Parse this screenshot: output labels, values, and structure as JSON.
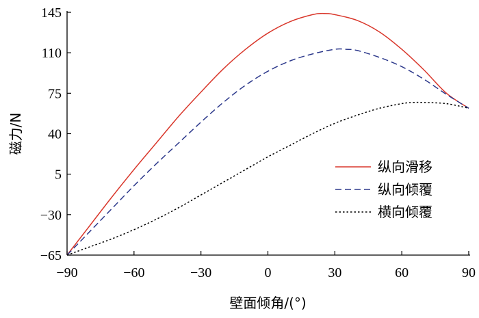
{
  "chart_data": {
    "type": "line",
    "title": "",
    "xlabel": "壁面倾角/(°)",
    "ylabel": "磁力/N",
    "xlim": [
      -90,
      90
    ],
    "ylim": [
      -65,
      145
    ],
    "xticks": [
      -90,
      -60,
      -30,
      0,
      30,
      60,
      90
    ],
    "yticks": [
      -65,
      -30,
      5,
      40,
      75,
      110,
      145
    ],
    "xtick_labels": [
      "−90",
      "−60",
      "−30",
      "0",
      "30",
      "60",
      "90"
    ],
    "ytick_labels": [
      "−65",
      "−30",
      "5",
      "40",
      "75",
      "110",
      "145"
    ],
    "grid": false,
    "legend_position": "right-middle",
    "series": [
      {
        "name": "纵向滑移",
        "color": "#d9372b",
        "style": "solid",
        "x": [
          -90,
          -80,
          -70,
          -60,
          -50,
          -40,
          -30,
          -20,
          -10,
          0,
          10,
          20,
          25,
          30,
          40,
          50,
          60,
          70,
          80,
          90
        ],
        "y": [
          -65,
          -40,
          -15,
          9,
          32,
          55,
          76,
          96,
          113,
          127,
          137,
          143,
          144,
          143,
          138,
          128,
          113,
          95,
          75,
          62
        ]
      },
      {
        "name": "纵向倾覆",
        "color": "#2e3a8c",
        "style": "dashed",
        "x": [
          -90,
          -80,
          -70,
          -60,
          -50,
          -40,
          -30,
          -20,
          -10,
          0,
          10,
          20,
          30,
          35,
          40,
          50,
          60,
          70,
          80,
          90
        ],
        "y": [
          -65,
          -45,
          -25,
          -5,
          14,
          32,
          50,
          67,
          82,
          94,
          103,
          109,
          113,
          113,
          112,
          106,
          98,
          87,
          74,
          62
        ]
      },
      {
        "name": "横向倾覆",
        "color": "#000000",
        "style": "dotted",
        "x": [
          -90,
          -80,
          -70,
          -60,
          -50,
          -40,
          -30,
          -20,
          -10,
          0,
          10,
          20,
          30,
          40,
          50,
          60,
          65,
          70,
          80,
          90
        ],
        "y": [
          -65,
          -58,
          -51,
          -43,
          -34,
          -24,
          -13,
          -2,
          9,
          20,
          30,
          40,
          49,
          56,
          62,
          66,
          67,
          67,
          66,
          62
        ]
      }
    ]
  }
}
